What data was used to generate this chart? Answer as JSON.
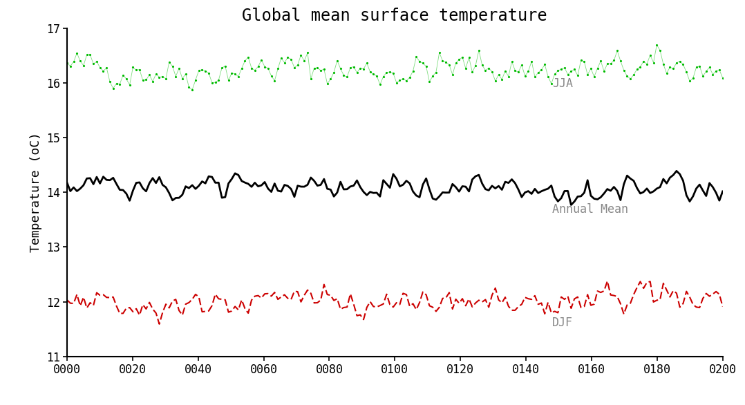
{
  "title": "Global mean surface temperature",
  "ylabel": "Temperature (oC)",
  "xlim": [
    0,
    200
  ],
  "ylim": [
    11,
    17
  ],
  "yticks": [
    11,
    12,
    13,
    14,
    15,
    16,
    17
  ],
  "xticks": [
    0,
    20,
    40,
    60,
    80,
    100,
    120,
    140,
    160,
    180,
    200
  ],
  "xtick_labels": [
    "0000",
    "0020",
    "0040",
    "0060",
    "0080",
    "0100",
    "0120",
    "0140",
    "0160",
    "0180",
    "0200"
  ],
  "jja_color": "#00BB00",
  "annual_color": "#000000",
  "djf_color": "#CC0000",
  "jja_label": "JJA",
  "annual_label": "Annual Mean",
  "djf_label": "DJF",
  "annotation_color": "#888888",
  "jja_mean": 16.25,
  "annual_mean": 14.08,
  "djf_mean": 12.0,
  "jja_std": 0.16,
  "annual_std": 0.12,
  "djf_std": 0.14,
  "n_points": 200,
  "background_color": "#ffffff",
  "title_fontsize": 17,
  "label_fontsize": 13,
  "tick_fontsize": 12,
  "annotation_fontsize": 12,
  "seed": 42
}
